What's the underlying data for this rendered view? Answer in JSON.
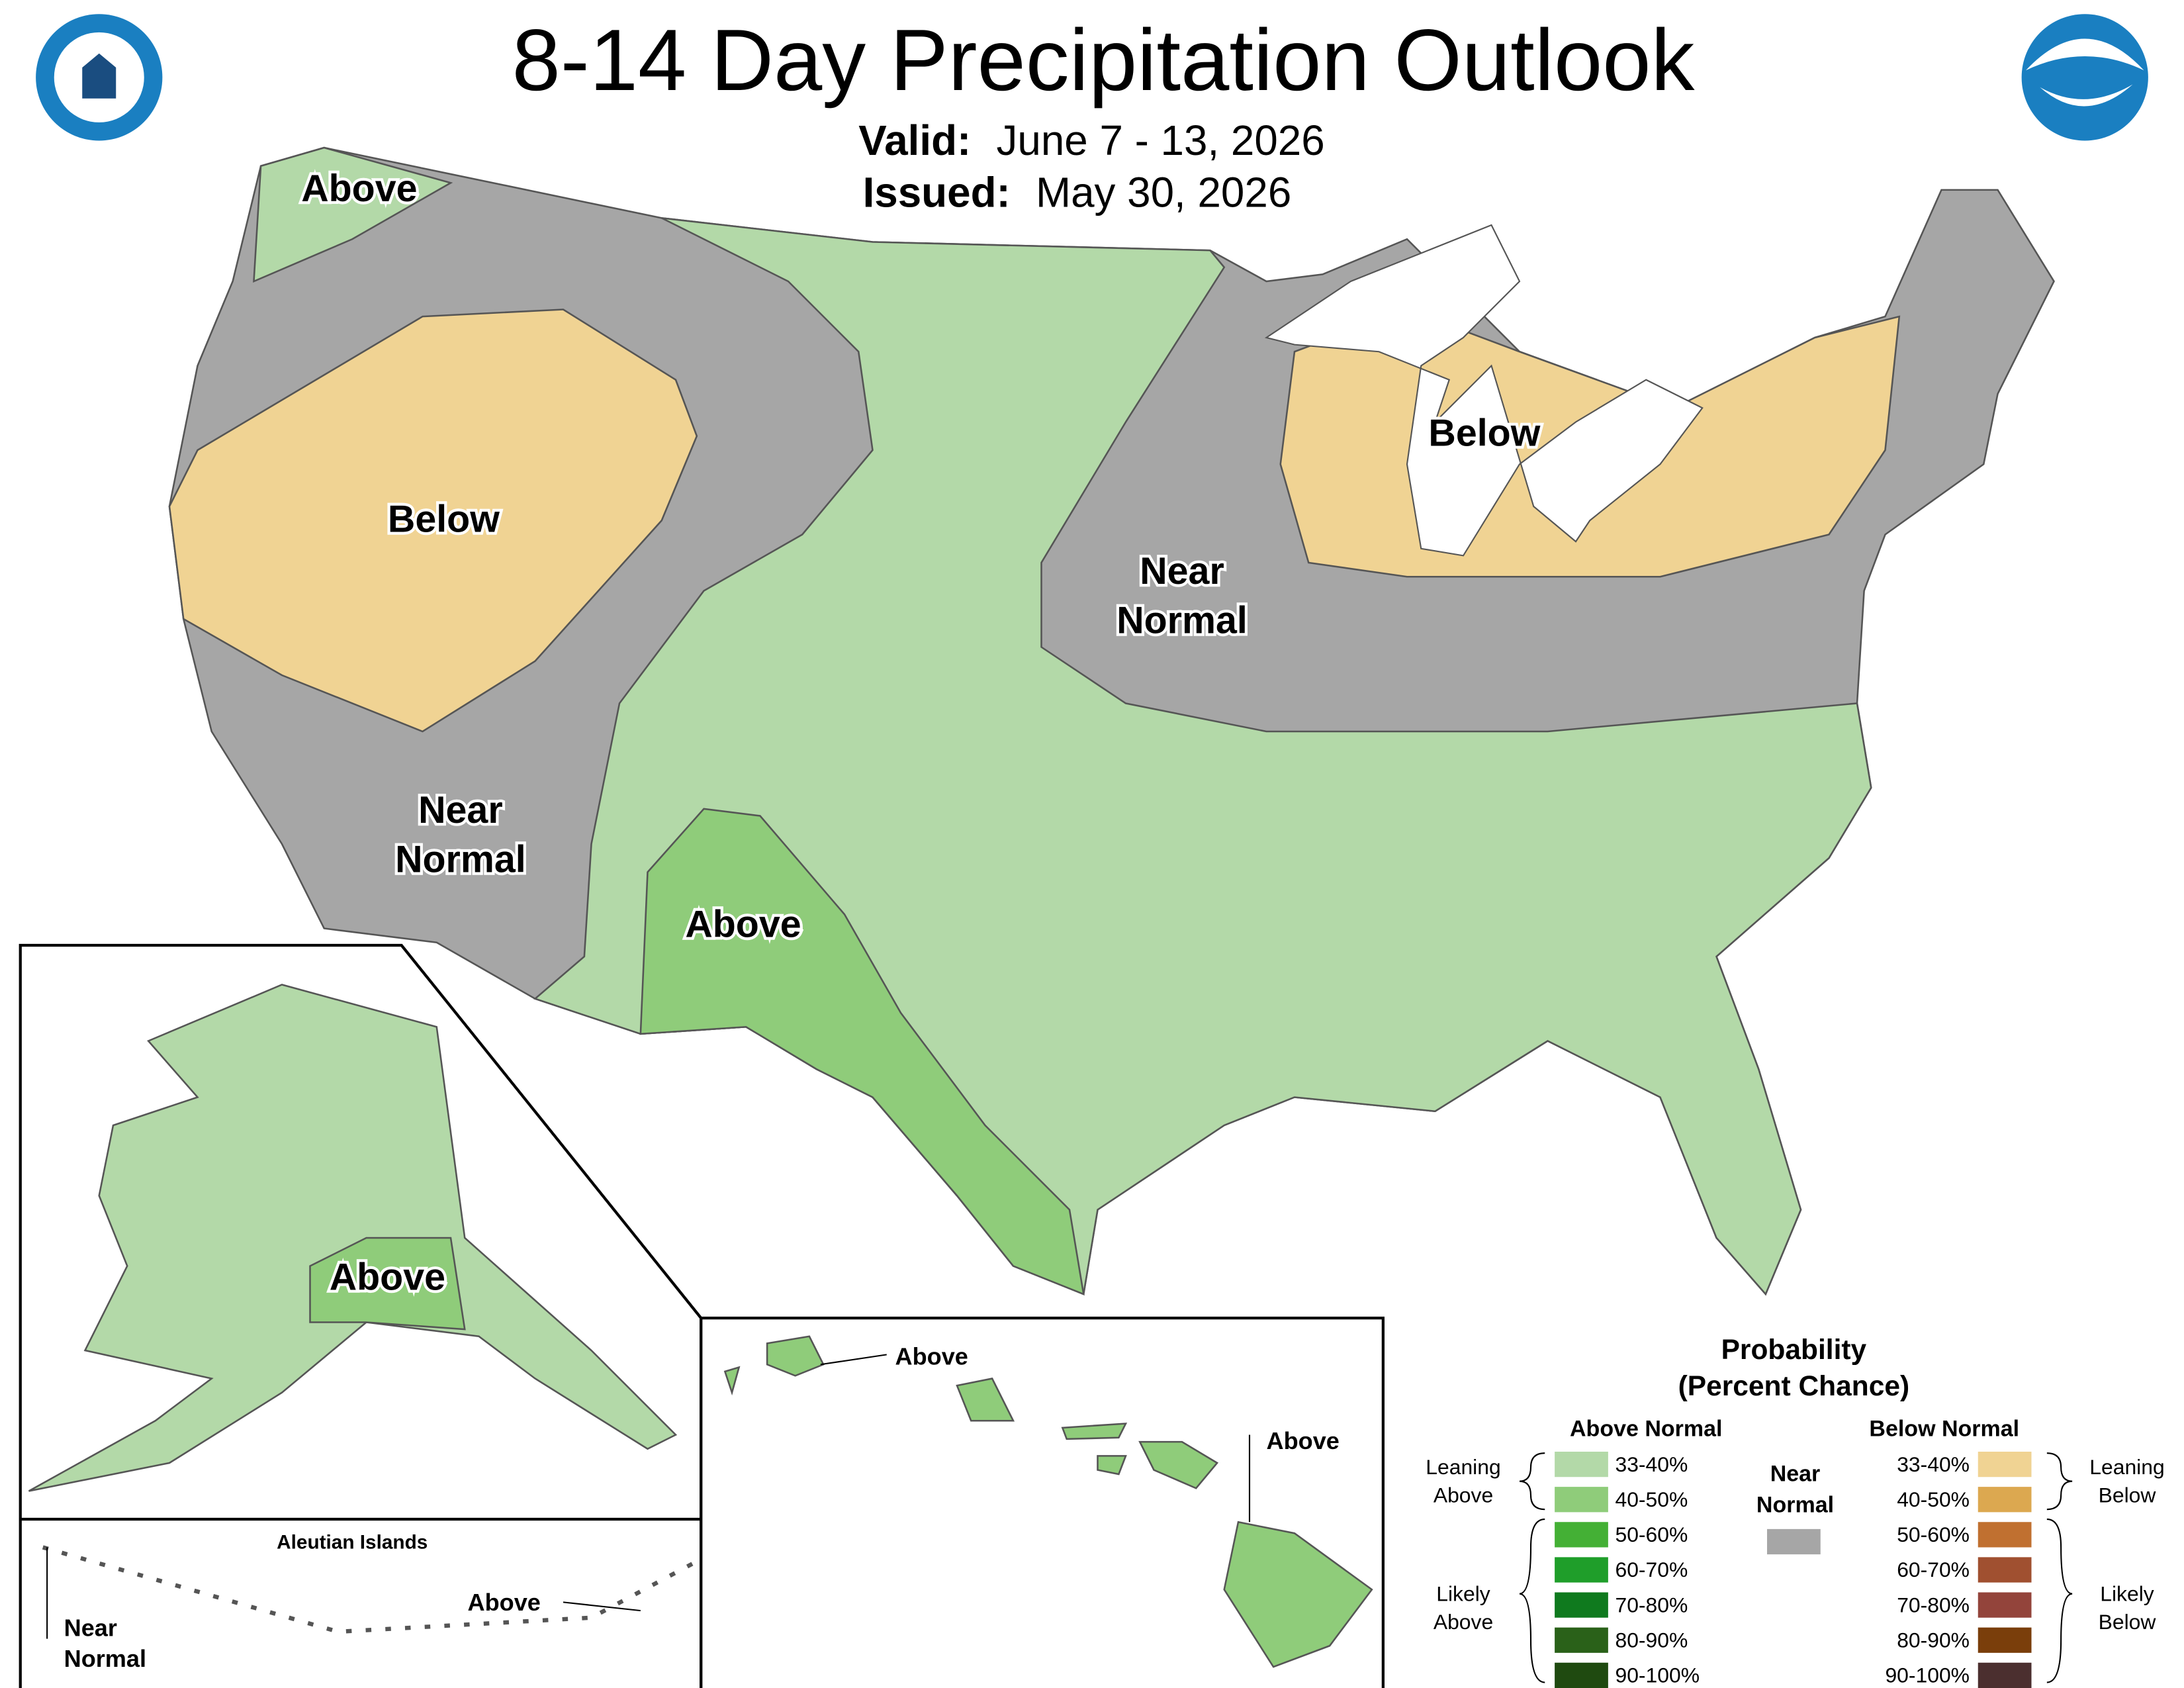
{
  "header": {
    "title": "8-14 Day Precipitation Outlook",
    "valid_label": "Valid:",
    "valid": "June 7 - 13, 2026",
    "issued_label": "Issued:",
    "issued": "May 30, 2026"
  },
  "map_labels": {
    "northwest": "Above",
    "west": "Below",
    "southwest": [
      "Near",
      "Normal"
    ],
    "southern_rockies": "Above",
    "midwest": [
      "Near",
      "Normal"
    ],
    "great_lakes": "Below",
    "alaska": "Above"
  },
  "insets": {
    "aleutian_title": "Aleutian Islands",
    "aleutian_near": [
      "Near",
      "Normal"
    ],
    "aleutian_above": "Above",
    "hawaii_kauai": "Above",
    "hawaii_big_island": "Above"
  },
  "legend": {
    "title": "Probability",
    "subtitle": "(Percent Chance)",
    "above_heading": "Above Normal",
    "below_heading": "Below Normal",
    "near": [
      "Near",
      "Normal"
    ],
    "near_color": "#a6a6a6",
    "leaning_above": [
      "Leaning",
      "Above"
    ],
    "likely_above": [
      "Likely",
      "Above"
    ],
    "leaning_below": [
      "Leaning",
      "Below"
    ],
    "likely_below": [
      "Likely",
      "Below"
    ],
    "above_bins": [
      {
        "label": "33-40%",
        "color": "#b3d9a8"
      },
      {
        "label": "40-50%",
        "color": "#8fcc7a"
      },
      {
        "label": "50-60%",
        "color": "#44b035"
      },
      {
        "label": "60-70%",
        "color": "#1f9e2a"
      },
      {
        "label": "70-80%",
        "color": "#0f7a1e"
      },
      {
        "label": "80-90%",
        "color": "#2a6119"
      },
      {
        "label": "90-100%",
        "color": "#1f4a10"
      }
    ],
    "below_bins": [
      {
        "label": "33-40%",
        "color": "#f0d393"
      },
      {
        "label": "40-50%",
        "color": "#dca850"
      },
      {
        "label": "50-60%",
        "color": "#c07030"
      },
      {
        "label": "60-70%",
        "color": "#a05030"
      },
      {
        "label": "70-80%",
        "color": "#93443b"
      },
      {
        "label": "80-90%",
        "color": "#7a3e0b"
      },
      {
        "label": "90-100%",
        "color": "#4b2f2f"
      }
    ]
  }
}
